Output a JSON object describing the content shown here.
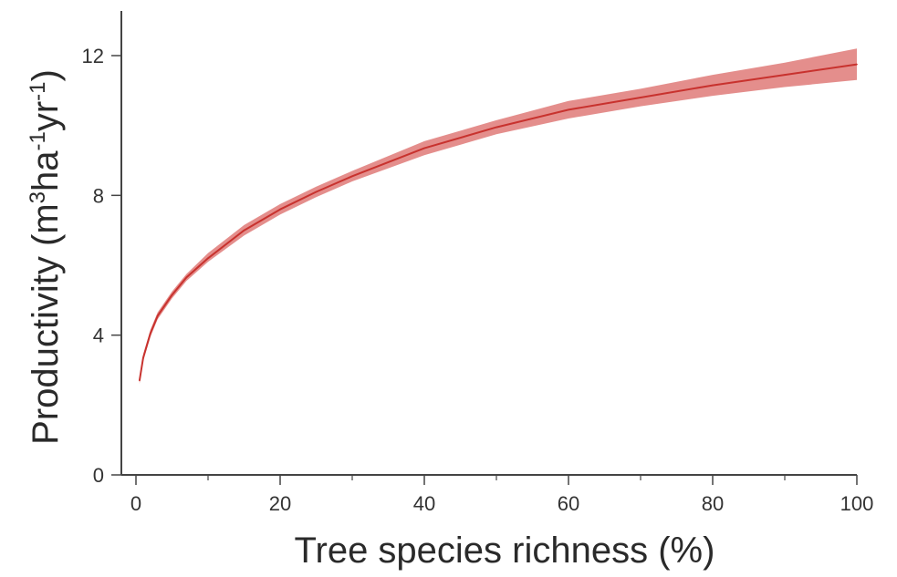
{
  "chart_data": {
    "type": "line",
    "title": "",
    "xlabel": "Tree species richness (%)",
    "ylabel": {
      "prefix": "Productivity (m",
      "sup1": "3",
      "mid1": "ha",
      "sup2": "-1",
      "mid2": "yr",
      "sup3": "-1",
      "suffix": ")"
    },
    "xlim": [
      0,
      100
    ],
    "ylim": [
      0,
      13
    ],
    "x_ticks": [
      0,
      20,
      40,
      60,
      80,
      100
    ],
    "x_tick_labels": [
      "0",
      "20",
      "40",
      "60",
      "80",
      "100"
    ],
    "x_minor_ticks": [
      10,
      30,
      50,
      70,
      90
    ],
    "y_ticks": [
      0,
      4,
      8,
      12
    ],
    "y_tick_labels": [
      "0",
      "4",
      "8",
      "12"
    ],
    "grid": false,
    "legend": "none",
    "series": [
      {
        "x": [
          0.5,
          1,
          2,
          3,
          5,
          7,
          10,
          15,
          20,
          25,
          30,
          40,
          50,
          60,
          70,
          80,
          90,
          100
        ],
        "y": [
          2.7,
          3.35,
          4.05,
          4.55,
          5.15,
          5.65,
          6.2,
          7.0,
          7.6,
          8.1,
          8.55,
          9.35,
          9.95,
          10.45,
          10.8,
          11.15,
          11.45,
          11.75
        ],
        "lower": [
          2.6,
          3.25,
          3.95,
          4.45,
          5.05,
          5.55,
          6.1,
          6.85,
          7.45,
          7.95,
          8.4,
          9.15,
          9.75,
          10.2,
          10.55,
          10.85,
          11.1,
          11.3
        ],
        "upper": [
          2.8,
          3.45,
          4.15,
          4.65,
          5.25,
          5.75,
          6.35,
          7.15,
          7.75,
          8.25,
          8.7,
          9.55,
          10.15,
          10.7,
          11.05,
          11.45,
          11.8,
          12.2
        ]
      }
    ],
    "colors": {
      "line": "#c8322e",
      "band": "#df7a78",
      "axis": "#444444"
    }
  }
}
